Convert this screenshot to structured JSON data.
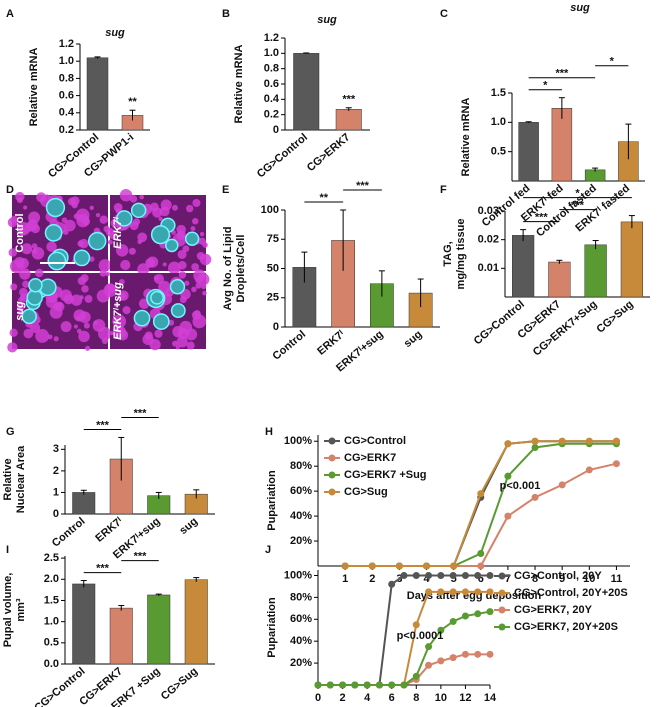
{
  "figure": {
    "image_panel": {
      "label": "D",
      "quadrants": [
        "Control",
        "ERK7ᴵ",
        "sug",
        "ERK7ᴵ+sug"
      ]
    }
  },
  "chart_data": [
    {
      "type": "bar",
      "label": "A",
      "title": "sug",
      "ylabel": "Relative mRNA",
      "categories": [
        "CG>Control",
        "CG>PWP1-i"
      ],
      "values": [
        1.04,
        0.37
      ],
      "errors": [
        0.01,
        0.06
      ],
      "colors": [
        "#595959",
        "#d4826a"
      ],
      "ylim": [
        0.2,
        1.2
      ],
      "yticks": [
        0.2,
        0.4,
        0.6,
        0.8,
        {
          "value": 1,
          "label": "1.0"
        },
        1.2
      ],
      "annotations": [
        {
          "text": "**",
          "above": "CG>PWP1-i"
        }
      ]
    },
    {
      "type": "bar",
      "label": "B",
      "title": "sug",
      "ylabel": "Relative mRNA",
      "categories": [
        "CG>Control",
        "CG>ERK7"
      ],
      "values": [
        1.0,
        0.27
      ],
      "errors": [
        0.005,
        0.02
      ],
      "colors": [
        "#595959",
        "#d4826a"
      ],
      "ylim": [
        0,
        1.2
      ],
      "yticks": [
        0,
        0.2,
        0.4,
        0.6,
        0.8,
        {
          "value": 1,
          "label": "1.0"
        },
        1.2
      ],
      "annotations": [
        {
          "text": "***",
          "above": "CG>ERK7"
        }
      ]
    },
    {
      "type": "bar",
      "label": "C",
      "title": "sug",
      "ylabel": "Relative mRNA",
      "categories": [
        "Control fed",
        "ERK7ᴵ fed",
        "Control fasted",
        "ERK7ᴵ fasted"
      ],
      "values": [
        1.0,
        1.24,
        0.19,
        0.67
      ],
      "errors": [
        0.01,
        0.18,
        0.03,
        0.3
      ],
      "colors": [
        "#595959",
        "#d4826a",
        "#5a9a32",
        "#c78a3a"
      ],
      "ylim": [
        0,
        1.5
      ],
      "yticks": [
        0.5,
        {
          "value": 1,
          "label": "1.0"
        },
        1.5
      ],
      "annotations": [
        {
          "text": "*",
          "between": [
            "Control fed",
            "ERK7ᴵ fed"
          ]
        },
        {
          "text": "***",
          "between": [
            "Control fed",
            "Control fasted"
          ]
        },
        {
          "text": "*",
          "between": [
            "Control fasted",
            "ERK7ᴵ fasted"
          ]
        }
      ]
    },
    {
      "type": "bar",
      "label": "E",
      "ylabel": [
        "Avg No. of Lipid",
        "Droplets/Cell"
      ],
      "categories": [
        "Control",
        "ERK7ᴵ",
        "ERK7ᴵ+sug",
        "sug"
      ],
      "values": [
        51,
        74,
        37,
        29
      ],
      "errors": [
        13,
        26,
        11,
        12
      ],
      "colors": [
        "#595959",
        "#d4826a",
        "#5a9a32",
        "#c78a3a"
      ],
      "ylim": [
        0,
        100
      ],
      "yticks": [
        0,
        25,
        50,
        75,
        100
      ],
      "annotations": [
        {
          "text": "**",
          "between": [
            "Control",
            "ERK7ᴵ"
          ]
        },
        {
          "text": "***",
          "between": [
            "ERK7ᴵ",
            "ERK7ᴵ+sug"
          ]
        }
      ]
    },
    {
      "type": "bar",
      "label": "F",
      "ylabel": [
        "TAG,",
        "mg/mg tissue"
      ],
      "categories": [
        "CG>Control",
        "CG>ERK7",
        "CG>ERK7+Sug",
        "CG>Sug"
      ],
      "values": [
        0.0215,
        0.0122,
        0.0182,
        0.0262
      ],
      "errors": [
        0.002,
        0.0006,
        0.0015,
        0.0022
      ],
      "colors": [
        "#595959",
        "#d4826a",
        "#5a9a32",
        "#c78a3a"
      ],
      "ylim": [
        0,
        0.03
      ],
      "yticks": [
        0.01,
        0.02,
        0.03
      ],
      "annotations": [
        {
          "text": "***",
          "between": [
            "CG>Control",
            "CG>ERK7"
          ]
        },
        {
          "text": "***",
          "between": [
            "CG>ERK7",
            "CG>ERK7+Sug"
          ]
        },
        {
          "text": "*",
          "between": [
            "CG>Control",
            "CG>Sug"
          ]
        }
      ]
    },
    {
      "type": "bar",
      "label": "G",
      "ylabel": [
        "Relative",
        "Nuclear Area"
      ],
      "categories": [
        "Control",
        "ERK7ᴵ",
        "ERK7ᴵ+sug",
        "sug"
      ],
      "values": [
        1.0,
        2.55,
        0.85,
        0.92
      ],
      "errors": [
        0.1,
        1.0,
        0.15,
        0.2
      ],
      "colors": [
        "#595959",
        "#d4826a",
        "#5a9a32",
        "#c78a3a"
      ],
      "ylim": [
        0,
        3.2
      ],
      "yticks": [
        0,
        1,
        2,
        3
      ],
      "annotations": [
        {
          "text": "***",
          "between": [
            "Control",
            "ERK7ᴵ"
          ]
        },
        {
          "text": "***",
          "between": [
            "ERK7ᴵ",
            "ERK7ᴵ+sug"
          ]
        }
      ]
    },
    {
      "type": "line",
      "label": "H",
      "ylabel": "Pupariation",
      "xlabel": "Days after egg deposition",
      "x": [
        1,
        2,
        3,
        4,
        5,
        6,
        7,
        8,
        9,
        10,
        11
      ],
      "series": [
        {
          "name": "CG>Control",
          "color": "#555555",
          "values": [
            0,
            0,
            0,
            0,
            0,
            55,
            98,
            100,
            100,
            100,
            100
          ]
        },
        {
          "name": "CG>ERK7",
          "color": "#d4826a",
          "values": [
            0,
            0,
            0,
            0,
            0,
            0,
            40,
            55,
            65,
            77,
            82
          ]
        },
        {
          "name": "CG>ERK7 +Sug",
          "color": "#5a9a32",
          "values": [
            0,
            0,
            0,
            0,
            0,
            10,
            72,
            95,
            98,
            98,
            98
          ]
        },
        {
          "name": "CG>Sug",
          "color": "#c78a3a",
          "values": [
            0,
            0,
            0,
            0,
            0,
            58,
            98,
            100,
            100,
            100,
            100
          ]
        }
      ],
      "xlim": [
        0,
        11.5
      ],
      "xticks": [
        1,
        2,
        3,
        4,
        5,
        6,
        7,
        8,
        9,
        10,
        11
      ],
      "ylim": [
        0,
        105
      ],
      "yticks": [
        {
          "value": 20,
          "label": "20%"
        },
        {
          "value": 40,
          "label": "40%"
        },
        {
          "value": 60,
          "label": "60%"
        },
        {
          "value": 80,
          "label": "80%"
        },
        {
          "value": 100,
          "label": "100%"
        }
      ],
      "legend": "upper left",
      "annotations": [
        {
          "text": "p<0.001"
        }
      ]
    },
    {
      "type": "bar",
      "label": "I",
      "ylabel": [
        "Pupal volume,",
        "mm³"
      ],
      "categories": [
        "CG>Control",
        "CG>ERK7",
        "CG>ERK7 +Sug",
        "CG>Sug"
      ],
      "values": [
        1.89,
        1.32,
        1.63,
        1.99
      ],
      "errors": [
        0.08,
        0.06,
        0.02,
        0.05
      ],
      "colors": [
        "#595959",
        "#d4826a",
        "#5a9a32",
        "#c78a3a"
      ],
      "ylim": [
        0,
        2.55
      ],
      "yticks": [
        {
          "value": 0,
          "label": "0.0"
        },
        0.5,
        {
          "value": 1,
          "label": "1.0"
        },
        1.5,
        {
          "value": 2,
          "label": "2.0"
        },
        2.5
      ],
      "annotations": [
        {
          "text": "***",
          "between": [
            "CG>Control",
            "CG>ERK7"
          ]
        },
        {
          "text": "***",
          "between": [
            "CG>ERK7",
            "CG>ERK7 +Sug"
          ]
        }
      ]
    },
    {
      "type": "line",
      "label": "J",
      "ylabel": "Pupariation",
      "xlabel": "Days after egg deposition",
      "x": [
        0,
        1,
        2,
        3,
        4,
        5,
        6,
        7,
        8,
        9,
        10,
        11,
        12,
        13,
        14
      ],
      "series": [
        {
          "name": "CG>Control, 20Y",
          "color": "#555555",
          "values": [
            0,
            0,
            0,
            0,
            0,
            0,
            92,
            100,
            100,
            100,
            100,
            100,
            100,
            100,
            100
          ]
        },
        {
          "name": "CG>Control, 20Y+20S",
          "color": "#c78a3a",
          "values": [
            0,
            0,
            0,
            0,
            0,
            0,
            0,
            0,
            55,
            85,
            85,
            85,
            85,
            85,
            85
          ]
        },
        {
          "name": "CG>ERK7, 20Y",
          "color": "#d4826a",
          "values": [
            0,
            0,
            0,
            0,
            0,
            0,
            0,
            0,
            5,
            18,
            22,
            25,
            28,
            28,
            28
          ]
        },
        {
          "name": "CG>ERK7, 20Y+20S",
          "color": "#5a9a32",
          "values": [
            0,
            0,
            0,
            0,
            0,
            0,
            0,
            0,
            8,
            35,
            50,
            58,
            63,
            65,
            67
          ]
        }
      ],
      "xlim": [
        0,
        14
      ],
      "xticks": [
        0,
        2,
        4,
        6,
        8,
        10,
        12,
        14
      ],
      "ylim": [
        0,
        105
      ],
      "yticks": [
        {
          "value": 20,
          "label": "20%"
        },
        {
          "value": 40,
          "label": "40%"
        },
        {
          "value": 60,
          "label": "60%"
        },
        {
          "value": 80,
          "label": "80%"
        },
        {
          "value": 100,
          "label": "100%"
        }
      ],
      "legend": "right",
      "annotations": [
        {
          "text": "p<0.0001"
        }
      ]
    }
  ]
}
